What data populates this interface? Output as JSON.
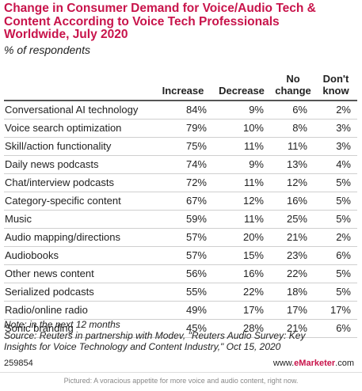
{
  "chart_data": {
    "type": "table",
    "title": "Change in Consumer Demand for Voice/Audio Tech & Content According to Voice Tech Professionals Worldwide, July 2020",
    "title_lines": [
      "Change in Consumer Demand for Voice/Audio Tech &",
      "Content According to Voice Tech Professionals",
      "Worldwide, July 2020"
    ],
    "subtitle": "% of respondents",
    "columns": [
      {
        "key": "increase",
        "label_lines": [
          "Increase"
        ]
      },
      {
        "key": "decrease",
        "label_lines": [
          "Decrease"
        ]
      },
      {
        "key": "no_change",
        "label_lines": [
          "No",
          "change"
        ]
      },
      {
        "key": "dont_know",
        "label_lines": [
          "Don't",
          "know"
        ]
      }
    ],
    "rows": [
      {
        "label": "Conversational AI technology",
        "values": [
          "84%",
          "9%",
          "6%",
          "2%"
        ]
      },
      {
        "label": "Voice search optimization",
        "values": [
          "79%",
          "10%",
          "8%",
          "3%"
        ]
      },
      {
        "label": "Skill/action functionality",
        "values": [
          "75%",
          "11%",
          "11%",
          "3%"
        ]
      },
      {
        "label": "Daily news podcasts",
        "values": [
          "74%",
          "9%",
          "13%",
          "4%"
        ]
      },
      {
        "label": "Chat/interview podcasts",
        "values": [
          "72%",
          "11%",
          "12%",
          "5%"
        ]
      },
      {
        "label": "Category-specific content",
        "values": [
          "67%",
          "12%",
          "16%",
          "5%"
        ]
      },
      {
        "label": "Music",
        "values": [
          "59%",
          "11%",
          "25%",
          "5%"
        ]
      },
      {
        "label": "Audio mapping/directions",
        "values": [
          "57%",
          "20%",
          "21%",
          "2%"
        ]
      },
      {
        "label": "Audiobooks",
        "values": [
          "57%",
          "15%",
          "23%",
          "6%"
        ]
      },
      {
        "label": "Other news content",
        "values": [
          "56%",
          "16%",
          "22%",
          "5%"
        ]
      },
      {
        "label": "Serialized podcasts",
        "values": [
          "55%",
          "22%",
          "18%",
          "5%"
        ]
      },
      {
        "label": "Radio/online radio",
        "values": [
          "49%",
          "17%",
          "17%",
          "17%"
        ]
      },
      {
        "label": "Sonic branding",
        "values": [
          "45%",
          "28%",
          "21%",
          "6%"
        ]
      }
    ],
    "note": "Note: in the next 12 months",
    "source_lines": [
      "Source: Reuters in partnership with Modev, \"Reuters Audio Survey: Key",
      "Insights for Voice Technology and Content Industry,\" Oct 15, 2020"
    ],
    "chart_id": "259854",
    "brand": {
      "prefix": "www.",
      "name": "eMarketer",
      "suffix": ".com"
    },
    "caption": "Pictured: A voracious appetite for more voice and audio content, right now.",
    "colors": {
      "title": "#c8144b",
      "rule": "#cfcfcf"
    }
  }
}
